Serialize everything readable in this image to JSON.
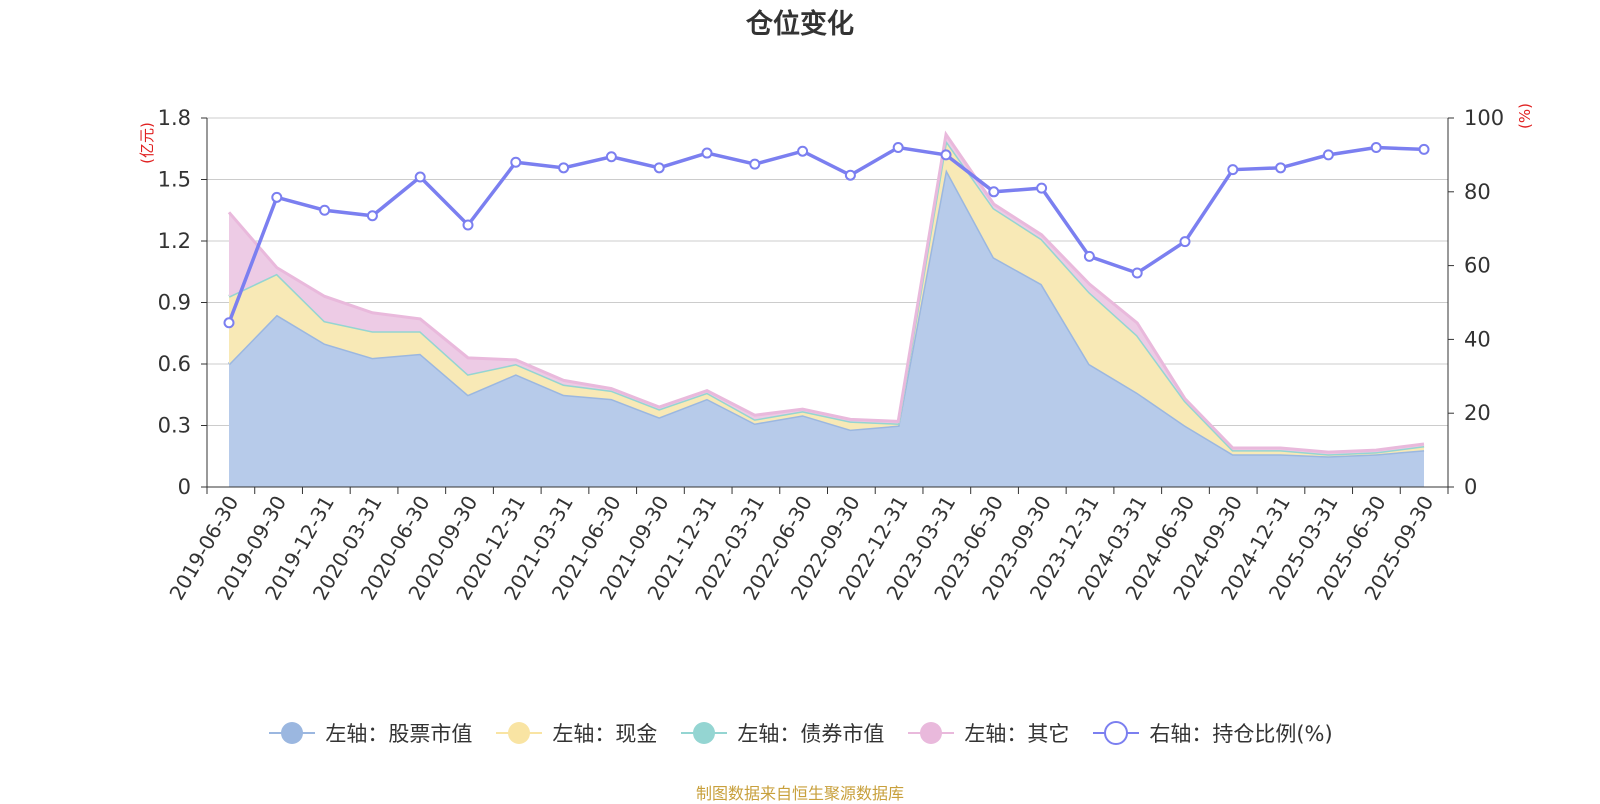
{
  "chart_data": {
    "type": "area",
    "title": "仓位变化",
    "left_axis_label": "(亿元)",
    "right_axis_label": "(%)",
    "left_ylim": [
      0,
      1.8
    ],
    "left_ticks": [
      0,
      0.3,
      0.6,
      0.9,
      1.2,
      1.5,
      1.8
    ],
    "left_tick_labels": [
      "0",
      "0.3",
      "0.6",
      "0.9",
      "1.2",
      "1.5",
      "1.8"
    ],
    "right_ylim": [
      0,
      100
    ],
    "right_ticks": [
      0,
      20,
      40,
      60,
      80,
      100
    ],
    "right_tick_labels": [
      "0",
      "20",
      "40",
      "60",
      "80",
      "100"
    ],
    "categories": [
      "2019-06-30",
      "2019-09-30",
      "2019-12-31",
      "2020-03-31",
      "2020-06-30",
      "2020-09-30",
      "2020-12-31",
      "2021-03-31",
      "2021-06-30",
      "2021-09-30",
      "2021-12-31",
      "2022-03-31",
      "2022-06-30",
      "2022-09-30",
      "2022-12-31",
      "2023-03-31",
      "2023-06-30",
      "2023-09-30",
      "2023-12-31",
      "2024-03-31",
      "2024-06-30",
      "2024-09-30",
      "2024-12-31",
      "2025-03-31",
      "2025-06-30",
      "2025-09-30"
    ],
    "series": [
      {
        "name": "左轴：股票市值",
        "axis": "left",
        "stack": true,
        "color": "#9bb7e0",
        "values": [
          0.6,
          0.84,
          0.7,
          0.63,
          0.65,
          0.45,
          0.55,
          0.45,
          0.43,
          0.34,
          0.43,
          0.31,
          0.35,
          0.28,
          0.3,
          1.55,
          1.12,
          0.99,
          0.6,
          0.46,
          0.3,
          0.16,
          0.16,
          0.15,
          0.16,
          0.18
        ]
      },
      {
        "name": "左轴：现金",
        "axis": "left",
        "stack": true,
        "color": "#f9e4a3",
        "values": [
          0.33,
          0.2,
          0.11,
          0.13,
          0.11,
          0.1,
          0.05,
          0.05,
          0.04,
          0.04,
          0.03,
          0.02,
          0.02,
          0.04,
          0.01,
          0.14,
          0.24,
          0.22,
          0.35,
          0.28,
          0.12,
          0.02,
          0.02,
          0.01,
          0.01,
          0.02
        ]
      },
      {
        "name": "左轴：债券市值",
        "axis": "left",
        "stack": true,
        "color": "#94d5d2",
        "values": [
          0,
          0,
          0,
          0,
          0,
          0,
          0,
          0,
          0,
          0,
          0,
          0,
          0,
          0,
          0,
          0,
          0,
          0,
          0,
          0,
          0,
          0,
          0,
          0,
          0,
          0
        ]
      },
      {
        "name": "左轴：其它",
        "axis": "left",
        "stack": true,
        "color": "#e9b9dc",
        "values": [
          0.41,
          0.03,
          0.12,
          0.09,
          0.06,
          0.08,
          0.02,
          0.02,
          0.01,
          0.01,
          0.01,
          0.02,
          0.01,
          0.01,
          0.01,
          0.03,
          0.02,
          0.02,
          0.04,
          0.06,
          0.01,
          0.01,
          0.01,
          0.01,
          0.01,
          0.01
        ]
      },
      {
        "name": "右轴：持仓比例(%)",
        "axis": "right",
        "stack": false,
        "color": "#7b7ff0",
        "values": [
          44.5,
          78.5,
          75.0,
          73.5,
          84.0,
          71.0,
          88.0,
          86.5,
          89.5,
          86.5,
          90.5,
          87.5,
          91.0,
          84.5,
          92.0,
          90.0,
          80.0,
          81.0,
          62.5,
          58.0,
          66.5,
          86.0,
          86.5,
          90.0,
          92.0,
          91.5
        ]
      }
    ]
  },
  "footer": "制图数据来自恒生聚源数据库"
}
